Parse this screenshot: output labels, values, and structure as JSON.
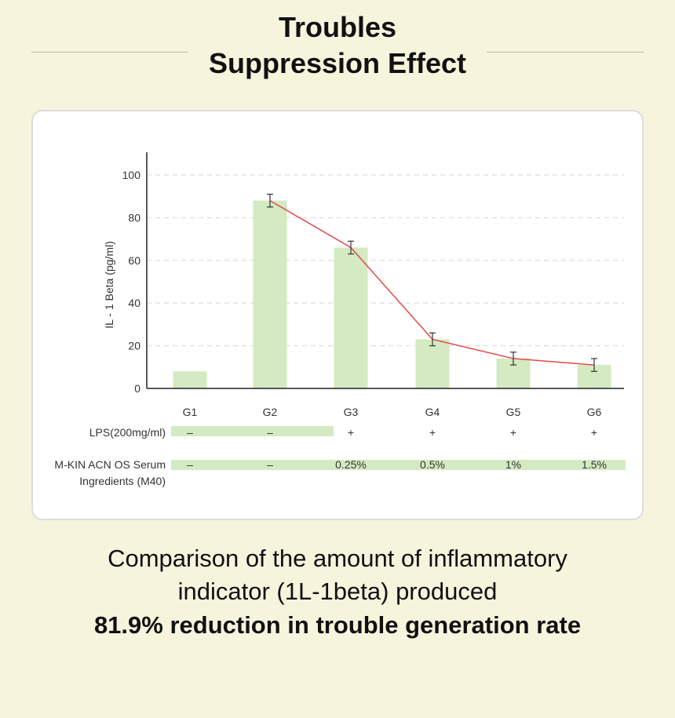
{
  "header": {
    "title_line1": "Troubles",
    "title_line2": "Suppression Effect"
  },
  "chart_data": {
    "type": "bar",
    "categories": [
      "G1",
      "G2",
      "G3",
      "G4",
      "G5",
      "G6"
    ],
    "series": [
      {
        "values": [
          8,
          88,
          66,
          23,
          14,
          11
        ],
        "error": [
          0,
          3,
          3,
          3,
          3,
          3
        ]
      }
    ],
    "trend_line": {
      "from_category": "G2",
      "values": [
        88,
        66,
        23,
        14,
        11
      ],
      "color": "#e04a4a"
    },
    "ylabel": "IL - 1 Beta (pg/ml)",
    "ylim": [
      0,
      100
    ],
    "yticks": [
      0,
      20,
      40,
      60,
      80,
      100
    ],
    "grid": "dashed horizontal",
    "bar_color": "#d4eac2",
    "conditions": [
      {
        "label": "LPS(200mg/ml)",
        "values": [
          "–",
          "–",
          "+",
          "+",
          "+",
          "+"
        ]
      },
      {
        "label_lines": [
          "M-KIN ACN OS Serum",
          "Ingredients (M40)"
        ],
        "values": [
          "–",
          "–",
          "0.25%",
          "0.5%",
          "1%",
          "1.5%"
        ]
      }
    ]
  },
  "caption": {
    "line1": "Comparison of the amount of inflammatory",
    "line2": "indicator (1L-1beta) produced",
    "line3": "81.9% reduction in trouble generation rate"
  }
}
